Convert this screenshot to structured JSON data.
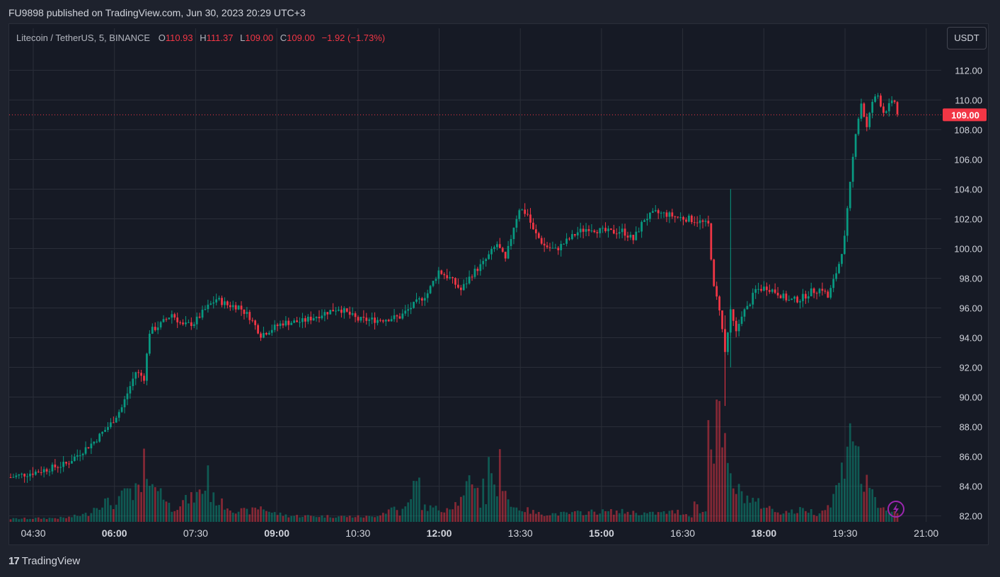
{
  "header": {
    "published": "FU9898 published on TradingView.com, Jun 30, 2023 20:29 UTC+3"
  },
  "legend": {
    "pair": "Litecoin / TetherUS, 5, BINANCE",
    "o_label": "O",
    "o_value": "110.93",
    "h_label": "H",
    "h_value": "111.37",
    "l_label": "L",
    "l_value": "109.00",
    "c_label": "C",
    "c_value": "109.00",
    "change": "−1.92 (−1.73%)"
  },
  "currency": "USDT",
  "last_price_label": "109.00",
  "footer": {
    "brand": "TradingView",
    "logo_glyph": "17"
  },
  "colors": {
    "up": "#089981",
    "down": "#f23645",
    "background": "#161a25",
    "grid": "#2a2e39",
    "text": "#d1d4dc",
    "accent": "#9c27b0"
  },
  "icons": {
    "flash": "lightning-icon"
  },
  "chart_data": {
    "type": "candlestick",
    "title": "Litecoin / TetherUS, 5, BINANCE",
    "x_tick_labels": [
      "04:30",
      "06:00",
      "07:30",
      "09:00",
      "10:30",
      "12:00",
      "13:30",
      "15:00",
      "16:30",
      "18:00",
      "19:30",
      "21:00"
    ],
    "x_tick_bold": [
      false,
      true,
      false,
      true,
      false,
      true,
      false,
      true,
      false,
      true,
      false,
      false
    ],
    "y_tick_labels": [
      "82.00",
      "84.00",
      "86.00",
      "88.00",
      "90.00",
      "92.00",
      "94.00",
      "96.00",
      "98.00",
      "100.00",
      "102.00",
      "104.00",
      "106.00",
      "108.00",
      "110.00",
      "112.00"
    ],
    "y_ticks": [
      82,
      84,
      86,
      88,
      90,
      92,
      94,
      96,
      98,
      100,
      102,
      104,
      106,
      108,
      110,
      112
    ],
    "ylim": [
      81.6,
      113.4
    ],
    "last_price": 109.0,
    "close_path": [
      [
        0,
        84.6
      ],
      [
        10,
        85.0
      ],
      [
        20,
        85.5
      ],
      [
        30,
        87.0
      ],
      [
        36,
        88.2
      ],
      [
        40,
        89.3
      ],
      [
        45,
        91.7
      ],
      [
        48,
        91.3
      ],
      [
        50,
        94.4
      ],
      [
        54,
        94.9
      ],
      [
        58,
        95.6
      ],
      [
        62,
        94.8
      ],
      [
        66,
        95.0
      ],
      [
        70,
        95.9
      ],
      [
        74,
        96.6
      ],
      [
        78,
        96.2
      ],
      [
        82,
        96.1
      ],
      [
        86,
        95.4
      ],
      [
        90,
        94.2
      ],
      [
        94,
        94.6
      ],
      [
        98,
        95.0
      ],
      [
        105,
        95.1
      ],
      [
        112,
        95.6
      ],
      [
        118,
        96.0
      ],
      [
        125,
        95.2
      ],
      [
        132,
        95.2
      ],
      [
        140,
        95.4
      ],
      [
        145,
        96.2
      ],
      [
        150,
        97.0
      ],
      [
        154,
        98.5
      ],
      [
        158,
        98.0
      ],
      [
        162,
        97.2
      ],
      [
        166,
        98.3
      ],
      [
        170,
        99.0
      ],
      [
        175,
        100.3
      ],
      [
        178,
        99.2
      ],
      [
        181,
        101.5
      ],
      [
        183,
        102.7
      ],
      [
        186,
        102.3
      ],
      [
        188,
        101.2
      ],
      [
        192,
        100.2
      ],
      [
        196,
        99.9
      ],
      [
        200,
        100.5
      ],
      [
        204,
        101.1
      ],
      [
        208,
        101.4
      ],
      [
        212,
        101.2
      ],
      [
        216,
        101.1
      ],
      [
        220,
        101.2
      ],
      [
        224,
        100.6
      ],
      [
        228,
        102.0
      ],
      [
        232,
        102.4
      ],
      [
        236,
        102.3
      ],
      [
        240,
        102.1
      ],
      [
        244,
        102.0
      ],
      [
        248,
        101.8
      ],
      [
        251,
        101.6
      ],
      [
        253,
        97.3
      ],
      [
        255,
        96.0
      ],
      [
        257,
        93.0
      ],
      [
        259,
        95.7
      ],
      [
        261,
        94.3
      ],
      [
        263,
        95.6
      ],
      [
        265,
        96.0
      ],
      [
        268,
        97.2
      ],
      [
        272,
        97.4
      ],
      [
        276,
        97.0
      ],
      [
        280,
        96.5
      ],
      [
        284,
        96.6
      ],
      [
        288,
        97.1
      ],
      [
        292,
        97.3
      ],
      [
        294,
        96.7
      ],
      [
        296,
        97.8
      ],
      [
        298,
        99.0
      ],
      [
        300,
        100.7
      ],
      [
        302,
        104.3
      ],
      [
        304,
        107.9
      ],
      [
        306,
        109.8
      ],
      [
        308,
        108.1
      ],
      [
        310,
        109.9
      ],
      [
        312,
        110.3
      ],
      [
        314,
        109.2
      ],
      [
        316,
        109.6
      ],
      [
        318,
        109.9
      ],
      [
        319,
        109.0
      ]
    ],
    "volume_path": [
      [
        0,
        0.3
      ],
      [
        20,
        0.4
      ],
      [
        28,
        0.8
      ],
      [
        30,
        1.4
      ],
      [
        34,
        2.0
      ],
      [
        38,
        1.6
      ],
      [
        40,
        2.5
      ],
      [
        42,
        3.5
      ],
      [
        44,
        1.8
      ],
      [
        45,
        3.7
      ],
      [
        47,
        2.6
      ],
      [
        48,
        5.6
      ],
      [
        50,
        5.0
      ],
      [
        51,
        4.0
      ],
      [
        52,
        3.0
      ],
      [
        54,
        3.5
      ],
      [
        56,
        2.0
      ],
      [
        58,
        1.3
      ],
      [
        62,
        2.0
      ],
      [
        66,
        2.4
      ],
      [
        70,
        3.3
      ],
      [
        71,
        5.5
      ],
      [
        72,
        2.5
      ],
      [
        76,
        1.8
      ],
      [
        80,
        1.2
      ],
      [
        86,
        1.0
      ],
      [
        90,
        1.5
      ],
      [
        94,
        0.9
      ],
      [
        100,
        0.6
      ],
      [
        130,
        0.5
      ],
      [
        135,
        1.0
      ],
      [
        138,
        1.5
      ],
      [
        140,
        0.8
      ],
      [
        144,
        2.0
      ],
      [
        146,
        5.5
      ],
      [
        148,
        1.5
      ],
      [
        155,
        1.2
      ],
      [
        160,
        1.8
      ],
      [
        163,
        2.3
      ],
      [
        165,
        4.0
      ],
      [
        167,
        4.2
      ],
      [
        169,
        1.8
      ],
      [
        170,
        4.5
      ],
      [
        171,
        2.0
      ],
      [
        172,
        5.5
      ],
      [
        174,
        4.6
      ],
      [
        175,
        2.0
      ],
      [
        176,
        6.0
      ],
      [
        177,
        4.3
      ],
      [
        178,
        3.5
      ],
      [
        180,
        1.5
      ],
      [
        185,
        1.2
      ],
      [
        190,
        0.8
      ],
      [
        200,
        0.8
      ],
      [
        210,
        1.0
      ],
      [
        220,
        1.0
      ],
      [
        230,
        0.8
      ],
      [
        240,
        1.0
      ],
      [
        245,
        0.6
      ],
      [
        246,
        2.0
      ],
      [
        248,
        1.0
      ],
      [
        250,
        1.0
      ],
      [
        251,
        10.0
      ],
      [
        252,
        9.8
      ],
      [
        253,
        7.0
      ],
      [
        254,
        12.0
      ],
      [
        255,
        9.5
      ],
      [
        256,
        8.0
      ],
      [
        257,
        7.0
      ],
      [
        258,
        5.0
      ],
      [
        260,
        3.5
      ],
      [
        262,
        3.0
      ],
      [
        266,
        2.2
      ],
      [
        270,
        1.7
      ],
      [
        276,
        1.0
      ],
      [
        282,
        1.0
      ],
      [
        286,
        1.3
      ],
      [
        290,
        0.8
      ],
      [
        294,
        1.5
      ],
      [
        296,
        2.5
      ],
      [
        298,
        4.0
      ],
      [
        300,
        6.0
      ],
      [
        301,
        8.0
      ],
      [
        302,
        11.0
      ],
      [
        303,
        9.0
      ],
      [
        305,
        6.0
      ],
      [
        306,
        4.5
      ],
      [
        307,
        3.0
      ],
      [
        308,
        5.5
      ],
      [
        309,
        3.5
      ],
      [
        310,
        2.5
      ],
      [
        312,
        1.3
      ],
      [
        319,
        1.0
      ]
    ],
    "volume_scale_max": 12.6
  }
}
